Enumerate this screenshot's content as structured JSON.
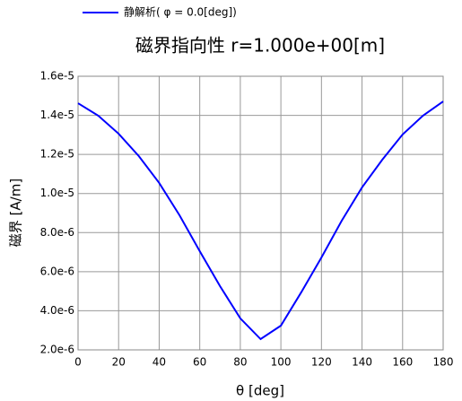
{
  "chart_data": {
    "type": "line",
    "title": "磁界指向性 r=1.000e+00[m]",
    "x_label": "θ [deg]",
    "y_label": "磁界 [A/m]",
    "x": [
      0,
      10,
      20,
      30,
      40,
      50,
      60,
      70,
      80,
      90,
      100,
      110,
      120,
      130,
      140,
      150,
      160,
      170,
      180
    ],
    "series": [
      {
        "name": "静解析( φ = 0.0[deg])",
        "color": "#0000ff",
        "values": [
          1.462e-05,
          1.398e-05,
          1.306e-05,
          1.191e-05,
          1.054e-05,
          8.89e-06,
          7.05e-06,
          5.26e-06,
          3.61e-06,
          2.55e-06,
          3.24e-06,
          4.94e-06,
          6.73e-06,
          8.61e-06,
          1.031e-05,
          1.173e-05,
          1.302e-05,
          1.398e-05,
          1.471e-05
        ]
      }
    ],
    "xlim": [
      0,
      180
    ],
    "xticks": [
      0,
      20,
      40,
      60,
      80,
      100,
      120,
      140,
      160,
      180
    ],
    "ylim": [
      2e-06,
      1.6e-05
    ],
    "yticks": [
      {
        "value": 2e-06,
        "label": "2.0e-6"
      },
      {
        "value": 4e-06,
        "label": "4.0e-6"
      },
      {
        "value": 6e-06,
        "label": "6.0e-6"
      },
      {
        "value": 8e-06,
        "label": "8.0e-6"
      },
      {
        "value": 1e-05,
        "label": "1.0e-5"
      },
      {
        "value": 1.2e-05,
        "label": "1.2e-5"
      },
      {
        "value": 1.4e-05,
        "label": "1.4e-5"
      },
      {
        "value": 1.6e-05,
        "label": "1.6e-5"
      }
    ],
    "grid": true
  }
}
